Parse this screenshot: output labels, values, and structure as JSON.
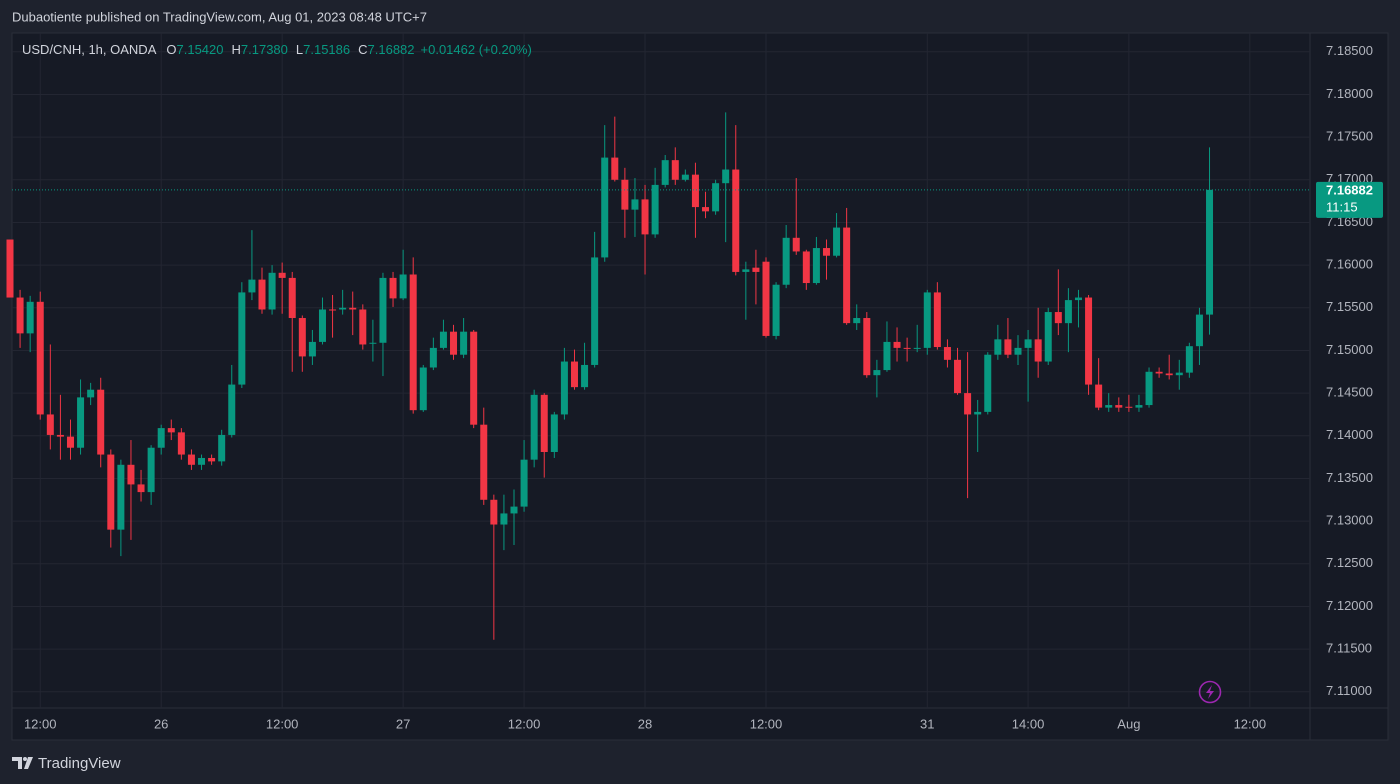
{
  "header": {
    "title": "Dubaotiente published on TradingView.com, Aug 01, 2023 08:48 UTC+7"
  },
  "chart_data": {
    "type": "candlestick",
    "symbol": "USD/CNH, 1h, OANDA",
    "ohlc_legend": [
      {
        "key": "O",
        "value": "7.15420"
      },
      {
        "key": "H",
        "value": "7.17380"
      },
      {
        "key": "L",
        "value": "7.15186"
      },
      {
        "key": "C",
        "value": "7.16882"
      }
    ],
    "change": "+0.01462 (+0.20%)",
    "open": [
      7.163,
      7.1562,
      7.152,
      7.1557,
      7.1425,
      7.1401,
      7.1399,
      7.1386,
      7.1445,
      7.1454,
      7.1378,
      7.129,
      7.1366,
      7.1343,
      7.1334,
      7.1386,
      7.1409,
      7.1404,
      7.1378,
      7.1366,
      7.1374,
      7.137,
      7.1401,
      7.146,
      7.1568,
      7.1583,
      7.1548,
      7.1591,
      7.1585,
      7.1538,
      7.1493,
      7.151,
      7.1548,
      7.1548,
      7.155,
      7.1548,
      7.1508,
      7.1509,
      7.1585,
      7.1561,
      7.1589,
      7.143,
      7.148,
      7.1503,
      7.1522,
      7.1495,
      7.1522,
      7.1413,
      7.1325,
      7.1296,
      7.1309,
      7.1317,
      7.1372,
      7.1448,
      7.1381,
      7.1425,
      7.1487,
      7.1457,
      7.1483,
      7.1609,
      7.1726,
      7.17,
      7.1665,
      7.1677,
      7.1636,
      7.1694,
      7.1723,
      7.17,
      7.1706,
      7.1668,
      7.1663,
      7.1696,
      7.1712,
      7.1592,
      7.1597,
      7.1604,
      7.1517,
      7.1577,
      7.1632,
      7.1616,
      7.1579,
      7.162,
      7.1611,
      7.1644,
      7.1532,
      7.1538,
      7.1471,
      7.1477,
      7.151,
      7.1503,
      7.1502,
      7.1503,
      7.1568,
      7.1504,
      7.1489,
      7.145,
      7.1425,
      7.1428,
      7.1495,
      7.1513,
      7.1495,
      7.1503,
      7.1513,
      7.1487,
      7.1545,
      7.1532,
      7.1559,
      7.1562,
      7.146,
      7.1433,
      7.1436,
      7.1434,
      7.1433,
      7.1436,
      7.1475,
      7.1473,
      7.1471,
      7.1474,
      7.1505,
      7.1542
    ],
    "high": [
      7.163,
      7.1571,
      7.1564,
      7.1569,
      7.1507,
      7.1448,
      7.1419,
      7.1466,
      7.1462,
      7.1468,
      7.1384,
      7.1372,
      7.1395,
      7.136,
      7.1389,
      7.1413,
      7.1419,
      7.1409,
      7.1384,
      7.1378,
      7.1378,
      7.1407,
      7.1483,
      7.158,
      7.1641,
      7.1597,
      7.16,
      7.1603,
      7.1592,
      7.1541,
      7.1524,
      7.1562,
      7.1565,
      7.1571,
      7.1569,
      7.1554,
      7.1536,
      7.1591,
      7.1592,
      7.1618,
      7.1609,
      7.1483,
      7.1515,
      7.1536,
      7.153,
      7.1538,
      7.1524,
      7.1433,
      7.1331,
      7.1331,
      7.1337,
      7.1395,
      7.1454,
      7.145,
      7.1428,
      7.1503,
      7.1501,
      7.1509,
      7.1639,
      7.1764,
      7.1774,
      7.1714,
      7.1702,
      7.1694,
      7.1714,
      7.1729,
      7.1738,
      7.1712,
      7.172,
      7.1686,
      7.17,
      7.1779,
      7.1764,
      7.1604,
      7.1618,
      7.1609,
      7.158,
      7.1647,
      7.1702,
      7.1618,
      7.1633,
      7.163,
      7.1661,
      7.1667,
      7.1554,
      7.1545,
      7.1489,
      7.1534,
      7.1527,
      7.1515,
      7.153,
      7.1571,
      7.158,
      7.1513,
      7.1503,
      7.1498,
      7.1442,
      7.1498,
      7.153,
      7.1538,
      7.1518,
      7.1524,
      7.155,
      7.155,
      7.1595,
      7.1573,
      7.1571,
      7.1565,
      7.1491,
      7.145,
      7.1445,
      7.1448,
      7.1448,
      7.148,
      7.148,
      7.1495,
      7.1489,
      7.1509,
      7.155,
      7.1738
    ],
    "low": [
      7.1562,
      7.1503,
      7.1498,
      7.1419,
      7.1384,
      7.1372,
      7.1372,
      7.1378,
      7.1436,
      7.1363,
      7.1269,
      7.1259,
      7.1278,
      7.1323,
      7.1319,
      7.1378,
      7.1395,
      7.1372,
      7.136,
      7.136,
      7.1366,
      7.1365,
      7.1398,
      7.1456,
      7.1559,
      7.1543,
      7.1542,
      7.1543,
      7.1475,
      7.1475,
      7.1483,
      7.1507,
      7.1515,
      7.1542,
      7.1518,
      7.1501,
      7.1487,
      7.147,
      7.1551,
      7.1559,
      7.1426,
      7.1428,
      7.1477,
      7.1501,
      7.1489,
      7.1491,
      7.1409,
      7.1319,
      7.1161,
      7.1266,
      7.1272,
      7.1311,
      7.1363,
      7.1351,
      7.1374,
      7.1419,
      7.1454,
      7.1454,
      7.148,
      7.1604,
      7.1698,
      7.1632,
      7.1633,
      7.1589,
      7.1632,
      7.1691,
      7.1694,
      7.1698,
      7.1632,
      7.1655,
      7.1659,
      7.1627,
      7.1588,
      7.1536,
      7.1554,
      7.1515,
      7.1513,
      7.1573,
      7.1612,
      7.1571,
      7.1577,
      7.1583,
      7.1609,
      7.153,
      7.1524,
      7.1468,
      7.1445,
      7.1475,
      7.1487,
      7.1487,
      7.1498,
      7.1495,
      7.1501,
      7.148,
      7.1448,
      7.1327,
      7.1381,
      7.1425,
      7.1489,
      7.1491,
      7.1483,
      7.144,
      7.1468,
      7.1483,
      7.1518,
      7.1498,
      7.1527,
      7.1448,
      7.143,
      7.1428,
      7.1428,
      7.1428,
      7.1428,
      7.1433,
      7.1468,
      7.1466,
      7.1454,
      7.1468,
      7.1483,
      7.15186
    ],
    "close": [
      7.1562,
      7.152,
      7.1557,
      7.1425,
      7.1401,
      7.1399,
      7.1386,
      7.1445,
      7.1454,
      7.1378,
      7.129,
      7.1366,
      7.1343,
      7.1334,
      7.1386,
      7.1409,
      7.1404,
      7.1378,
      7.1366,
      7.1374,
      7.137,
      7.1401,
      7.146,
      7.1568,
      7.1583,
      7.1548,
      7.1591,
      7.1585,
      7.1538,
      7.1493,
      7.151,
      7.1548,
      7.1547,
      7.155,
      7.1548,
      7.1507,
      7.1509,
      7.1585,
      7.1561,
      7.1589,
      7.143,
      7.148,
      7.1503,
      7.1522,
      7.1495,
      7.1522,
      7.1413,
      7.1325,
      7.1296,
      7.1309,
      7.1317,
      7.1372,
      7.1448,
      7.1381,
      7.1425,
      7.1487,
      7.1457,
      7.1483,
      7.1609,
      7.1726,
      7.17,
      7.1665,
      7.1677,
      7.1636,
      7.1694,
      7.1723,
      7.17,
      7.1706,
      7.1668,
      7.1663,
      7.1696,
      7.1712,
      7.1592,
      7.1595,
      7.1592,
      7.1517,
      7.1577,
      7.1632,
      7.1616,
      7.1579,
      7.162,
      7.1611,
      7.1644,
      7.1532,
      7.1538,
      7.1471,
      7.1477,
      7.151,
      7.1503,
      7.1502,
      7.1503,
      7.1568,
      7.1504,
      7.1489,
      7.145,
      7.1425,
      7.1428,
      7.1495,
      7.1513,
      7.1495,
      7.1503,
      7.1513,
      7.1487,
      7.1545,
      7.1532,
      7.1559,
      7.1562,
      7.146,
      7.1433,
      7.1436,
      7.1433,
      7.1433,
      7.1436,
      7.1475,
      7.1473,
      7.1471,
      7.1474,
      7.1505,
      7.1542,
      7.16882
    ],
    "up_color": "#089981",
    "down_color": "#f23645",
    "ylim": [
      7.1081,
      7.1872
    ],
    "yticks": [
      {
        "value": 7.11,
        "label": "7.11000"
      },
      {
        "value": 7.115,
        "label": "7.11500"
      },
      {
        "value": 7.12,
        "label": "7.12000"
      },
      {
        "value": 7.125,
        "label": "7.12500"
      },
      {
        "value": 7.13,
        "label": "7.13000"
      },
      {
        "value": 7.135,
        "label": "7.13500"
      },
      {
        "value": 7.14,
        "label": "7.14000"
      },
      {
        "value": 7.145,
        "label": "7.14500"
      },
      {
        "value": 7.15,
        "label": "7.15000"
      },
      {
        "value": 7.155,
        "label": "7.15500"
      },
      {
        "value": 7.16,
        "label": "7.16000"
      },
      {
        "value": 7.165,
        "label": "7.16500"
      },
      {
        "value": 7.17,
        "label": "7.17000"
      },
      {
        "value": 7.175,
        "label": "7.17500"
      },
      {
        "value": 7.18,
        "label": "7.18000"
      },
      {
        "value": 7.185,
        "label": "7.18500"
      }
    ],
    "xticks": [
      {
        "value": 3,
        "label": "12:00"
      },
      {
        "value": 15,
        "label": "26"
      },
      {
        "value": 27,
        "label": "12:00"
      },
      {
        "value": 39,
        "label": "27"
      },
      {
        "value": 51,
        "label": "12:00"
      },
      {
        "value": 63,
        "label": "28"
      },
      {
        "value": 75,
        "label": "12:00"
      },
      {
        "value": 91,
        "label": "31"
      },
      {
        "value": 101,
        "label": "14:00"
      },
      {
        "value": 111,
        "label": "Aug"
      },
      {
        "value": 123,
        "label": "12:00"
      }
    ],
    "countdown": "11:15",
    "grid": true
  },
  "footer": {
    "brand": "TradingView"
  }
}
